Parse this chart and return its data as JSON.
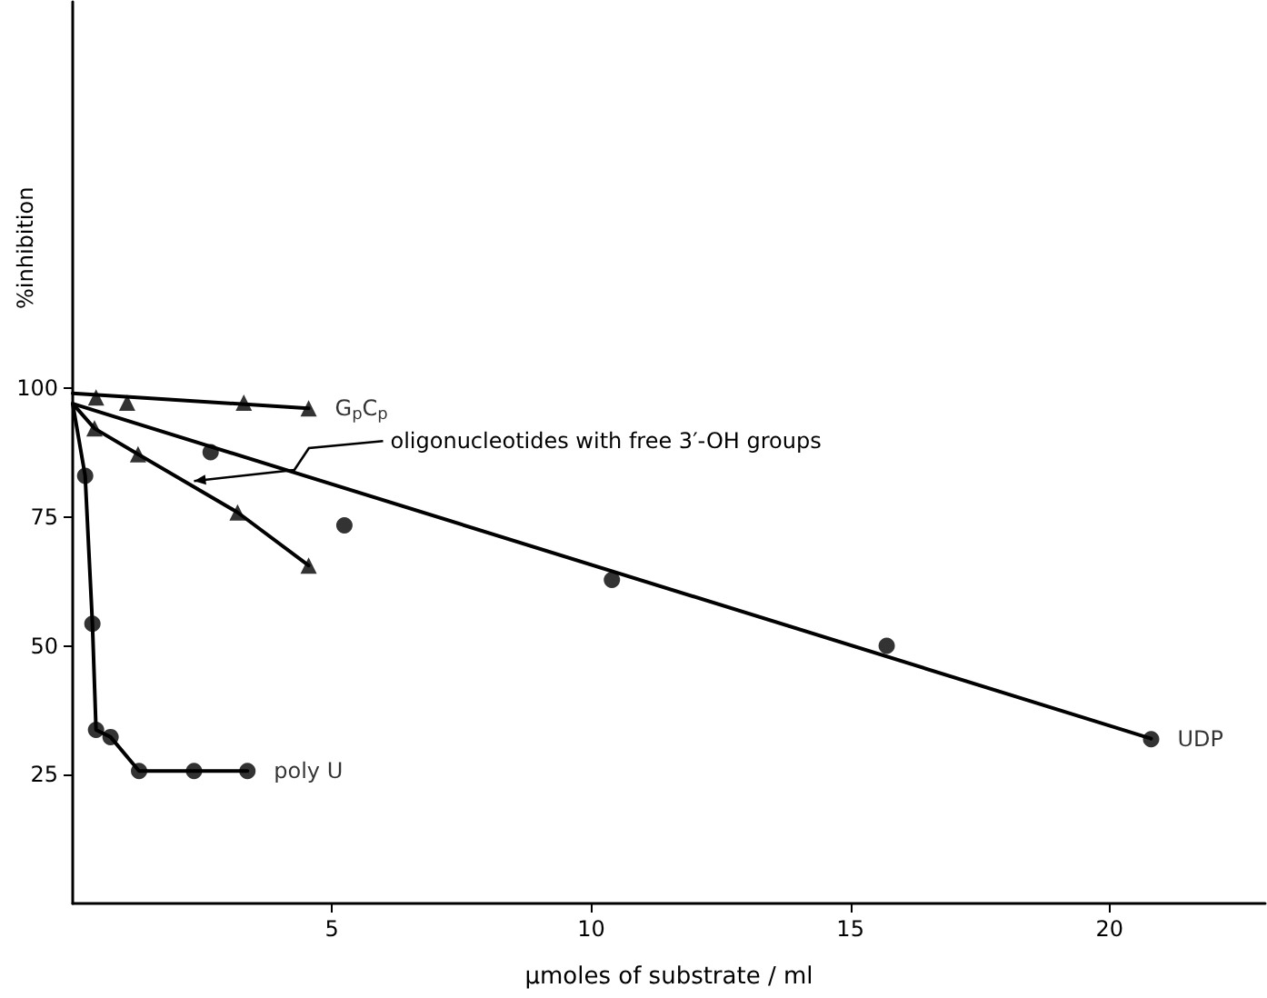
{
  "chart_data": {
    "type": "scatter",
    "xlabel": "μmoles of substrate / ml",
    "ylabel": "%inhibition",
    "xlim": [
      0,
      23
    ],
    "xticks": [
      5,
      10,
      15,
      20
    ],
    "ylim": [
      0,
      175
    ],
    "yticks": [
      25,
      50,
      75,
      100
    ],
    "grid": false,
    "legend": false,
    "annotations": [
      {
        "text": "oligonucleotides with free 3′-OH groups",
        "x": 2.34,
        "y": 82
      }
    ],
    "series": [
      {
        "name": "G$_{p}$C$_{p}$",
        "marker": "triangle",
        "color": "#000000",
        "x": [
          0.45,
          1.05,
          3.3,
          4.55
        ],
        "values": [
          98.2,
          97.2,
          97.2,
          96.1
        ]
      },
      {
        "type": "line",
        "marker": "none",
        "color": "#000000",
        "x": [
          0,
          4.55
        ],
        "values": [
          99,
          96.1
        ]
      },
      {
        "marker": "triangle",
        "color": "#000000",
        "x": [
          0.42,
          1.26,
          3.18,
          4.55
        ],
        "values": [
          92.2,
          87.2,
          75.9,
          65.6
        ]
      },
      {
        "type": "line",
        "marker": "none",
        "color": "#000000",
        "x": [
          0,
          0.42,
          1.26,
          3.18,
          4.55
        ],
        "values": [
          97,
          92.2,
          87.2,
          75.9,
          65.6
        ]
      },
      {
        "name": "UDP",
        "marker": "circle",
        "color": "#000000",
        "x": [
          2.66,
          5.24,
          10.4,
          15.7,
          20.8
        ],
        "values": [
          87.6,
          73.4,
          62.8,
          50.0,
          31.9
        ]
      },
      {
        "type": "line",
        "marker": "none",
        "color": "#000000",
        "x": [
          0,
          20.8
        ],
        "values": [
          97,
          32
        ]
      },
      {
        "name": "poly U",
        "marker": "circle",
        "color": "#000000",
        "x": [
          0.24,
          0.38,
          0.45,
          0.73,
          1.28,
          2.34,
          3.37
        ],
        "values": [
          83,
          54.3,
          33.7,
          32.3,
          25.7,
          25.7,
          25.7
        ]
      },
      {
        "type": "line",
        "marker": "none",
        "color": "#000000",
        "x": [
          0,
          0.24,
          0.38,
          0.45,
          0.73,
          1.28,
          2.34,
          3.37
        ],
        "values": [
          97,
          83,
          54.3,
          33.7,
          32.3,
          25.7,
          25.7,
          25.7
        ]
      }
    ]
  }
}
